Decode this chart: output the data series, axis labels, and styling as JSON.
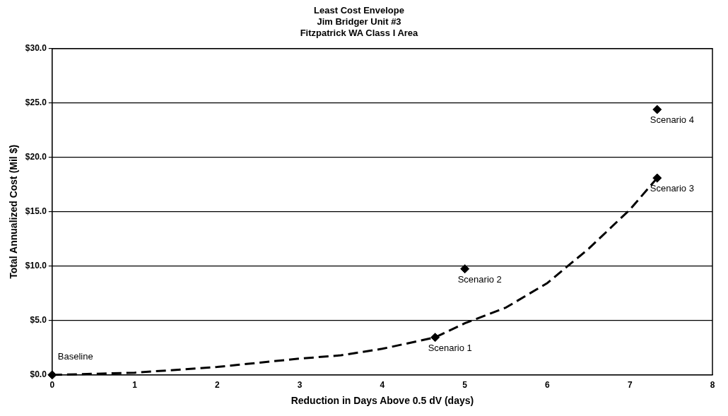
{
  "chart_data": {
    "type": "scatter",
    "title": [
      "Least Cost Envelope",
      "Jim Bridger Unit #3",
      "Fitzpatrick WA Class I Area"
    ],
    "xlabel": "Reduction in Days Above 0.5 dV (days)",
    "ylabel": "Total Annualized Cost (Mil $)",
    "series": [
      {
        "type": "line",
        "color": "#000000",
        "line_style": "dashed",
        "marker": "none",
        "x": [
          0,
          1,
          2,
          3,
          3.5,
          4,
          4.64,
          5,
          5.5,
          6,
          6.5,
          7,
          7.33
        ],
        "values": [
          0,
          0.2,
          0.73,
          1.5,
          1.8,
          2.4,
          3.45,
          4.75,
          6.2,
          8.45,
          11.6,
          15.2,
          18.1
        ]
      },
      {
        "color": "#000000",
        "marker": "diamond",
        "x": [
          0,
          4.64,
          5,
          7.33,
          7.33
        ],
        "values": [
          0,
          3.45,
          9.75,
          18.1,
          24.4
        ]
      }
    ],
    "annotations": [
      {
        "text": "Baseline",
        "x": 0,
        "y": 0
      },
      {
        "text": "Scenario 1",
        "x": 4.64,
        "y": 3.45
      },
      {
        "text": "Scenario 2",
        "x": 5,
        "y": 9.75
      },
      {
        "text": "Scenario 3",
        "x": 7.33,
        "y": 18.1
      },
      {
        "text": "Scenario 4",
        "x": 7.33,
        "y": 24.4
      }
    ],
    "xlim": [
      0,
      8
    ],
    "xticks": [
      0,
      1,
      2,
      3,
      4,
      5,
      6,
      7,
      8
    ],
    "ylim": [
      0,
      30
    ],
    "yticks": [
      {
        "value": 0,
        "label": "$0.0"
      },
      {
        "value": 5,
        "label": "$5.0"
      },
      {
        "value": 10,
        "label": "$10.0"
      },
      {
        "value": 15,
        "label": "$15.0"
      },
      {
        "value": 20,
        "label": "$20.0"
      },
      {
        "value": 25,
        "label": "$25.0"
      },
      {
        "value": 30,
        "label": "$30.0"
      }
    ],
    "grid": "y",
    "legend": false
  }
}
